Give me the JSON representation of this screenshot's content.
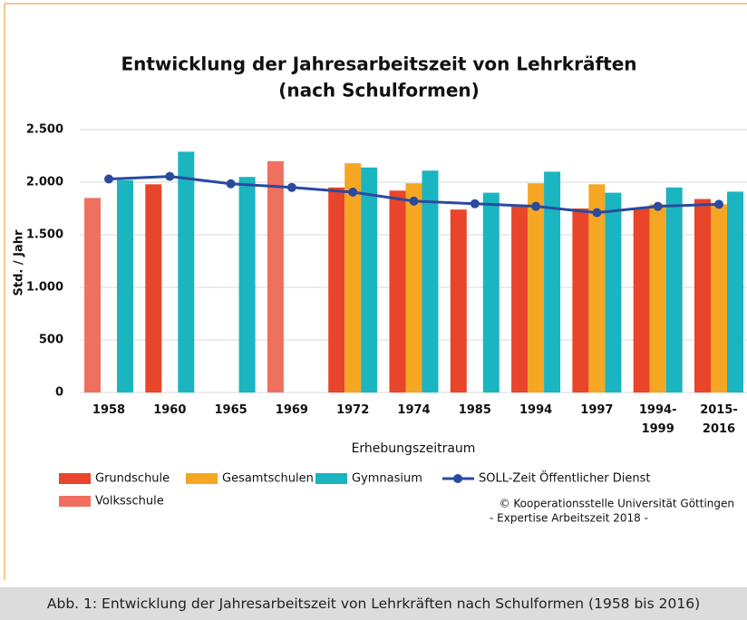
{
  "chart_data": {
    "type": "bar",
    "title": "Entwicklung der Jahresarbeitszeit von Lehrkräften",
    "subtitle": "(nach Schulformen)",
    "y_label": "Std. / Jahr",
    "x_label": "Erhebungszeitraum",
    "categories": [
      "1958",
      "1960",
      "1965",
      "1969",
      "1972",
      "1974",
      "1985",
      "1994",
      "1997",
      "1994-1999",
      "2015-2016"
    ],
    "series": [
      {
        "name": "Grundschule",
        "color": "#e8452a",
        "values": [
          null,
          1980,
          null,
          null,
          1950,
          1920,
          1740,
          1780,
          1750,
          1750,
          1840
        ]
      },
      {
        "name": "Gesamtschulen",
        "color": "#f5a623",
        "values": [
          null,
          null,
          null,
          null,
          2180,
          1990,
          null,
          1990,
          1980,
          1790,
          1790
        ]
      },
      {
        "name": "Gymnasium",
        "color": "#1ab5c0",
        "values": [
          2020,
          2290,
          2050,
          null,
          2140,
          2110,
          1900,
          2100,
          1900,
          1950,
          1910
        ]
      },
      {
        "name": "SOLL-Zeit Öffentlicher Dienst",
        "type": "line",
        "color": "#2a4aa0",
        "values": [
          2030,
          2055,
          1985,
          1950,
          1905,
          1820,
          1795,
          1770,
          1710,
          1770,
          1790
        ]
      },
      {
        "name": "Volksschule",
        "color": "#f07060",
        "values": [
          1850,
          null,
          null,
          2200,
          null,
          null,
          null,
          null,
          null,
          null,
          null
        ]
      }
    ],
    "ylim": [
      0,
      2500
    ],
    "yticks": [
      0,
      500,
      {
        "value": 1000,
        "label": "1.000"
      },
      {
        "value": 1500,
        "label": "1.500"
      },
      {
        "value": 2000,
        "label": "2.000"
      },
      {
        "value": 2500,
        "label": "2.500"
      }
    ],
    "grid": true,
    "annotations": [
      "© Kooperationsstelle Universität Göttingen",
      "- Expertise Arbeitszeit 2018 -"
    ]
  },
  "caption": "Abb. 1: Entwicklung der Jahresarbeitszeit von Lehrkräften nach Schulformen (1958 bis 2016)"
}
